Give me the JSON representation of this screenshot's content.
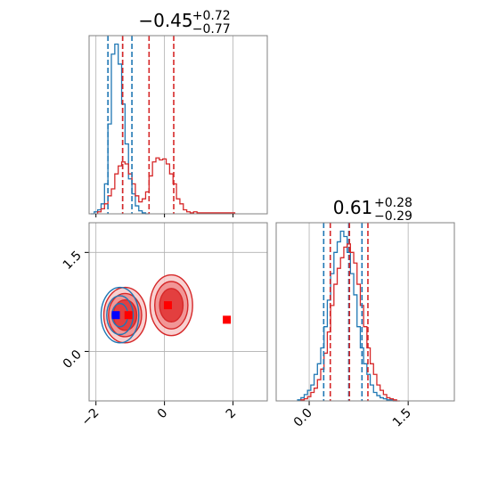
{
  "chart_data": {
    "type": "corner",
    "colors": {
      "series_a": "#1f77b4",
      "series_b": "#d62728",
      "grid": "#b0b0b0",
      "marker_a": "#0000ff",
      "marker_b": "#ff0000"
    },
    "panels": [
      {
        "id": "hist_x",
        "type": "histogram",
        "title": {
          "median": "−0.45",
          "plus": "+0.72",
          "minus": "−0.77"
        },
        "xlim": [
          -2.2,
          3.0
        ],
        "xticks": [
          -2,
          0,
          2
        ],
        "grid": true,
        "series": [
          {
            "color_key": "series_a",
            "bin_width": 0.1,
            "bins_x": [
              -2.1,
              -2.0,
              -1.9,
              -1.8,
              -1.7,
              -1.6,
              -1.5,
              -1.4,
              -1.3,
              -1.2,
              -1.1,
              -1.0,
              -0.9,
              -0.8,
              -0.7,
              -0.6,
              -0.5
            ],
            "counts": [
              0,
              2,
              4,
              10,
              30,
              90,
              160,
              170,
              150,
              110,
              70,
              35,
              20,
              8,
              3,
              1,
              0
            ],
            "quantiles": [
              -1.65,
              -1.22,
              -0.95
            ]
          },
          {
            "color_key": "series_b",
            "bin_width": 0.1,
            "bins_x": [
              -1.9,
              -1.8,
              -1.7,
              -1.6,
              -1.5,
              -1.4,
              -1.3,
              -1.2,
              -1.1,
              -1.0,
              -0.9,
              -0.8,
              -0.7,
              -0.6,
              -0.5,
              -0.4,
              -0.3,
              -0.2,
              -0.1,
              0.0,
              0.1,
              0.2,
              0.3,
              0.4,
              0.5,
              0.6,
              0.7,
              0.8,
              0.9,
              1.0,
              1.2,
              1.4,
              1.6,
              1.8,
              2.0
            ],
            "counts": [
              2,
              5,
              10,
              18,
              25,
              40,
              48,
              52,
              50,
              40,
              30,
              18,
              12,
              15,
              22,
              38,
              52,
              56,
              54,
              55,
              50,
              40,
              30,
              15,
              10,
              4,
              2,
              1,
              2,
              1,
              1,
              1,
              1,
              1,
              1
            ],
            "quantiles": [
              -1.22,
              -0.45,
              0.27
            ]
          }
        ]
      },
      {
        "id": "hist_y",
        "type": "histogram",
        "title": {
          "median": "0.61",
          "plus": "+0.28",
          "minus": "−0.29"
        },
        "xlim": [
          -0.5,
          2.2
        ],
        "xticks": [
          0.0,
          1.5
        ],
        "xtick_labels": [
          "0.0",
          "1.5"
        ],
        "grid": true,
        "series": [
          {
            "color_key": "series_a",
            "bin_width": 0.05,
            "bins_x": [
              -0.15,
              -0.1,
              -0.05,
              0.0,
              0.05,
              0.1,
              0.15,
              0.2,
              0.25,
              0.3,
              0.35,
              0.4,
              0.45,
              0.5,
              0.55,
              0.6,
              0.65,
              0.7,
              0.75,
              0.8,
              0.85,
              0.9,
              0.95,
              1.0,
              1.05,
              1.1,
              1.15,
              1.2,
              1.25,
              1.3
            ],
            "counts": [
              1,
              3,
              6,
              10,
              15,
              25,
              35,
              50,
              70,
              95,
              120,
              140,
              150,
              160,
              155,
              140,
              120,
              100,
              70,
              50,
              35,
              25,
              15,
              8,
              5,
              3,
              2,
              1,
              1,
              0
            ],
            "quantiles": [
              0.22,
              0.6,
              0.8
            ]
          },
          {
            "color_key": "series_b",
            "bin_width": 0.05,
            "bins_x": [
              -0.1,
              -0.05,
              0.0,
              0.05,
              0.1,
              0.15,
              0.2,
              0.25,
              0.3,
              0.35,
              0.4,
              0.45,
              0.5,
              0.55,
              0.6,
              0.65,
              0.7,
              0.75,
              0.8,
              0.85,
              0.9,
              0.95,
              1.0,
              1.05,
              1.1,
              1.15,
              1.2,
              1.25,
              1.3,
              1.35
            ],
            "counts": [
              1,
              2,
              4,
              8,
              12,
              20,
              30,
              45,
              65,
              90,
              110,
              125,
              135,
              145,
              148,
              140,
              130,
              110,
              90,
              70,
              50,
              35,
              25,
              15,
              10,
              6,
              3,
              2,
              1,
              0
            ],
            "quantiles": [
              0.32,
              0.61,
              0.89
            ]
          }
        ]
      },
      {
        "id": "scatter_xy",
        "type": "contour",
        "xlim": [
          -2.2,
          3.0
        ],
        "ylim": [
          -0.75,
          1.95
        ],
        "xticks": [
          -2,
          0,
          2
        ],
        "yticks": [
          0.0,
          1.5
        ],
        "ytick_labels": [
          "0.0",
          "1.5"
        ],
        "grid": true,
        "series_b_lobes": [
          {
            "cx": -1.15,
            "cy": 0.55,
            "rx": 0.62,
            "ry": 0.42
          },
          {
            "cx": 0.2,
            "cy": 0.7,
            "rx": 0.62,
            "ry": 0.46
          }
        ],
        "series_b_levels": [
          1.0,
          0.78,
          0.55
        ],
        "series_a_blob": {
          "cx": -1.3,
          "cy": 0.55,
          "rx": 0.55,
          "ry": 0.42
        },
        "series_a_levels": [
          1.0,
          0.7,
          0.42
        ],
        "markers": [
          {
            "x": -1.42,
            "y": 0.55,
            "color_key": "marker_a"
          },
          {
            "x": -1.05,
            "y": 0.55,
            "color_key": "marker_b"
          },
          {
            "x": 0.1,
            "y": 0.7,
            "color_key": "marker_b"
          },
          {
            "x": 1.82,
            "y": 0.48,
            "color_key": "marker_b"
          }
        ]
      }
    ]
  }
}
